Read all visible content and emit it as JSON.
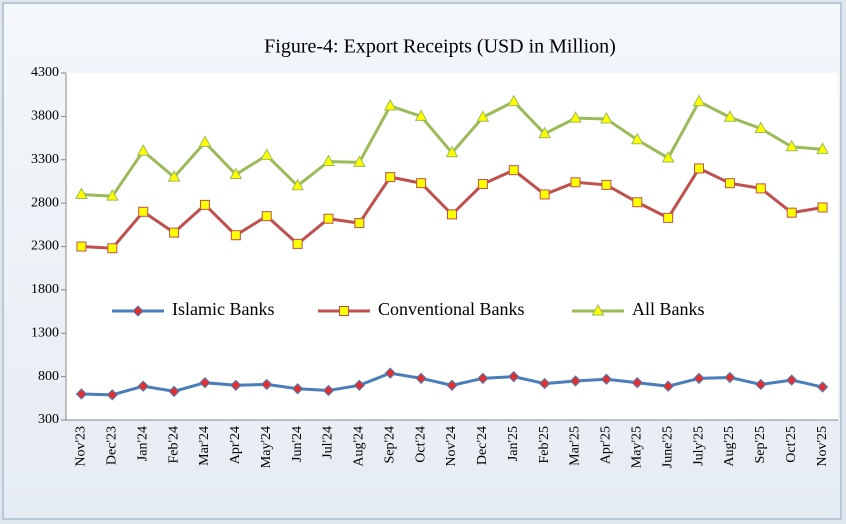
{
  "chart_data": {
    "type": "line",
    "title": "Figure-4: Export Receipts (USD in Million)",
    "categories": [
      "Nov'23",
      "Dec'23",
      "Jan'24",
      "Feb'24",
      "Mar'24",
      "Apr'24",
      "May'24",
      "Jun'24",
      "Jul'24",
      "Aug'24",
      "Sep'24",
      "Oct'24",
      "Nov'24",
      "Dec'24",
      "Jan'25",
      "Feb'25",
      "Mar'25",
      "Apr'25",
      "May'25",
      "June'25",
      "July'25",
      "Aug'25",
      "Sep'25",
      "Oct'25",
      "Nov'25"
    ],
    "series": [
      {
        "name": "Islamic Banks",
        "color": "#4a7ebb",
        "marker": "diamond",
        "marker_fill": "#e03030",
        "values": [
          600,
          590,
          690,
          630,
          730,
          700,
          710,
          660,
          640,
          700,
          840,
          780,
          700,
          780,
          800,
          720,
          750,
          770,
          730,
          690,
          780,
          790,
          710,
          760,
          680
        ]
      },
      {
        "name": "Conventional Banks",
        "color": "#c0504d",
        "marker": "square",
        "marker_fill": "#ffff00",
        "values": [
          2300,
          2280,
          2700,
          2460,
          2780,
          2430,
          2650,
          2330,
          2620,
          2570,
          3100,
          3030,
          2670,
          3020,
          3180,
          2900,
          3040,
          3010,
          2810,
          2630,
          3200,
          3030,
          2970,
          2690,
          2750
        ]
      },
      {
        "name": "All Banks",
        "color": "#9bbb59",
        "marker": "triangle",
        "marker_fill": "#ffff00",
        "values": [
          2900,
          2880,
          3400,
          3100,
          3500,
          3130,
          3350,
          3000,
          3280,
          3270,
          3920,
          3800,
          3380,
          3790,
          3970,
          3600,
          3780,
          3770,
          3530,
          3320,
          3970,
          3790,
          3660,
          3450,
          3420
        ]
      }
    ],
    "ylim": [
      300,
      4300
    ],
    "yticks": [
      300,
      800,
      1300,
      1800,
      2300,
      2800,
      3300,
      3800,
      4300
    ]
  }
}
